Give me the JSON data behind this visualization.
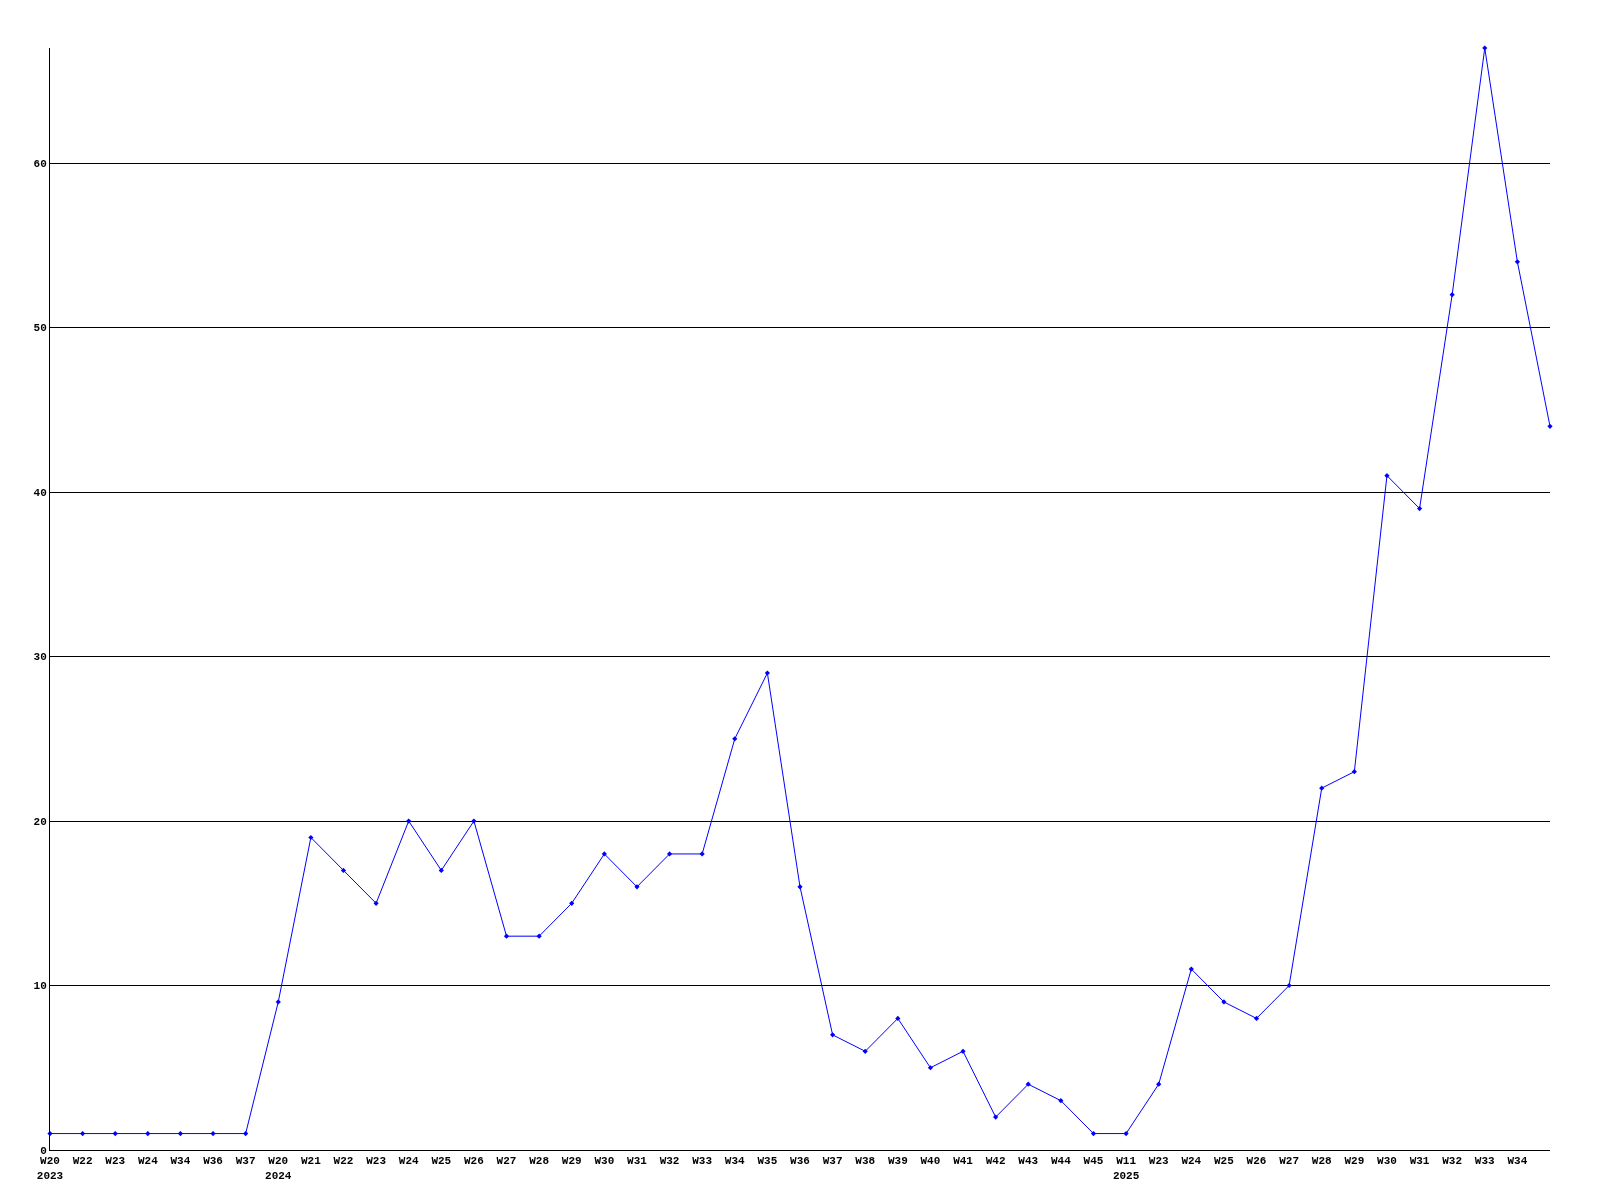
{
  "chart_data": {
    "type": "line",
    "categories": [
      "W20\n2023",
      "W22",
      "W23",
      "W24",
      "W34",
      "W36",
      "W37",
      "W20\n2024",
      "W21",
      "W22",
      "W23",
      "W24",
      "W25",
      "W26",
      "W27",
      "W28",
      "W29",
      "W30",
      "W31",
      "W32",
      "W33",
      "W34",
      "W35",
      "W36",
      "W37",
      "W38",
      "W39",
      "W40",
      "W41",
      "W42",
      "W43",
      "W44",
      "W45",
      "W11\n2025",
      "W23",
      "W24",
      "W25",
      "W26",
      "W27",
      "W28",
      "W29",
      "W30",
      "W31",
      "W32",
      "W33",
      "W34",
      null
    ],
    "series": [
      {
        "color": "#0000ff",
        "values": [
          1,
          1,
          1,
          1,
          1,
          1,
          1,
          9,
          19,
          17,
          15,
          20,
          17,
          20,
          13,
          13,
          15,
          18,
          16,
          18,
          18,
          25,
          29,
          16,
          7,
          6,
          8,
          5,
          6,
          2,
          4,
          3,
          1,
          1,
          4,
          11,
          9,
          8,
          10,
          22,
          23,
          41,
          39,
          52,
          67,
          54,
          44
        ]
      }
    ],
    "ylim": [
      0,
      67
    ],
    "yticks": [
      0,
      10,
      20,
      30,
      40,
      50,
      60
    ],
    "grid": "y",
    "marker": "diamond",
    "line_style": "solid"
  }
}
